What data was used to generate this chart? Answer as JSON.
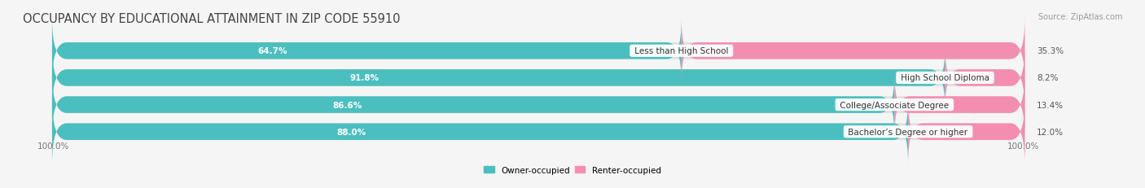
{
  "title": "OCCUPANCY BY EDUCATIONAL ATTAINMENT IN ZIP CODE 55910",
  "source": "Source: ZipAtlas.com",
  "categories": [
    "Less than High School",
    "High School Diploma",
    "College/Associate Degree",
    "Bachelor’s Degree or higher"
  ],
  "owner_pct": [
    64.7,
    91.8,
    86.6,
    88.0
  ],
  "renter_pct": [
    35.3,
    8.2,
    13.4,
    12.0
  ],
  "owner_color": "#4BBFBF",
  "renter_color": "#F48EB1",
  "bg_color": "#f5f5f5",
  "bar_bg_color": "#e0e0e0",
  "axis_label_left": "100.0%",
  "axis_label_right": "100.0%",
  "title_fontsize": 10.5,
  "bar_height": 0.62,
  "bar_gap": 0.18,
  "xlim_left": -5,
  "xlim_right": 115
}
